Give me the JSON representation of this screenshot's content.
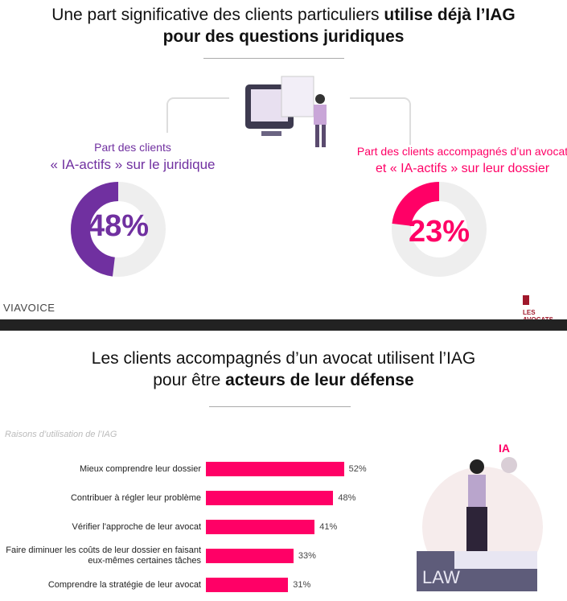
{
  "section1": {
    "title_regular": "Une part significative des clients particuliers ",
    "title_bold_1": "utilise déjà l’IAG",
    "title_bold_2": "pour des questions juridiques",
    "left": {
      "label_1": "Part des clients",
      "label_2": "« IA-actifs » sur le juridique",
      "value": "48%",
      "percent": 48,
      "color": "#7030a0"
    },
    "right": {
      "label_1": "Part des clients accompagnés d’un avocat",
      "label_2": "et « IA-actifs » sur leur dossier",
      "value": "23%",
      "percent": 23,
      "color": "#ff0066"
    },
    "logo_left": "VIAVOICE",
    "logo_right": "LES AVOCATS"
  },
  "section2": {
    "title_1": "Les clients accompagnés d’un avocat utilisent l’IAG",
    "title_2_regular": "pour être ",
    "title_2_bold": "acteurs de leur défense",
    "illustration_label": "IA",
    "illustration_book": "LAW"
  },
  "chart_data": {
    "type": "bar",
    "orientation": "horizontal",
    "title": "Raisons d’utilisation de l’IAG",
    "categories": [
      "Mieux comprendre leur dossier",
      "Contribuer à régler leur problème",
      "Vérifier l'approche de leur avocat",
      "Faire diminuer les coûts de leur dossier en faisant eux-mêmes certaines tâches",
      "Comprendre la stratégie de leur avocat"
    ],
    "values": [
      52,
      48,
      41,
      33,
      31
    ],
    "labels": [
      "52%",
      "48%",
      "41%",
      "33%",
      "31%"
    ],
    "color": "#ff0066"
  }
}
